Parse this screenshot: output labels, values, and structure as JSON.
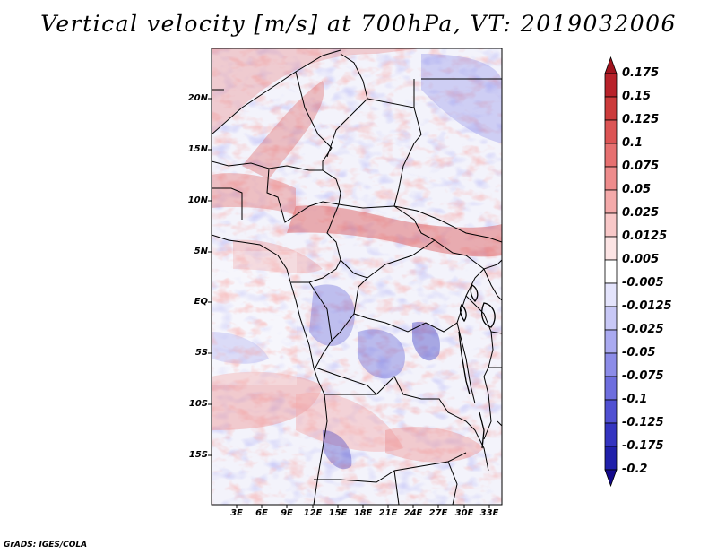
{
  "title": "Vertical velocity [m/s] at 700hPa, VT: 2019032006",
  "credit": "GrADS: IGES/COLA",
  "lat_labels": [
    "20N",
    "15N",
    "10N",
    "5N",
    "EQ",
    "5S",
    "10S",
    "15S"
  ],
  "lon_labels": [
    "3E",
    "6E",
    "9E",
    "12E",
    "15E",
    "18E",
    "21E",
    "24E",
    "27E",
    "30E",
    "33E"
  ],
  "colorbar": {
    "labels": [
      "0.175",
      "0.15",
      "0.125",
      "0.1",
      "0.075",
      "0.05",
      "0.025",
      "0.0125",
      "0.005",
      "-0.005",
      "-0.0125",
      "-0.025",
      "-0.05",
      "-0.075",
      "-0.1",
      "-0.125",
      "-0.175",
      "-0.2"
    ],
    "colors": [
      "#a0141e",
      "#b8222a",
      "#cc3b3b",
      "#dc5454",
      "#e67070",
      "#ee8c8c",
      "#f4aaaa",
      "#f8c8c8",
      "#fce4e4",
      "#ffffff",
      "#e4e4fc",
      "#c8c8f6",
      "#aaaaf0",
      "#8c8ce8",
      "#6e6ede",
      "#5050d2",
      "#3434c0",
      "#2020aa",
      "#140a8c"
    ]
  }
}
